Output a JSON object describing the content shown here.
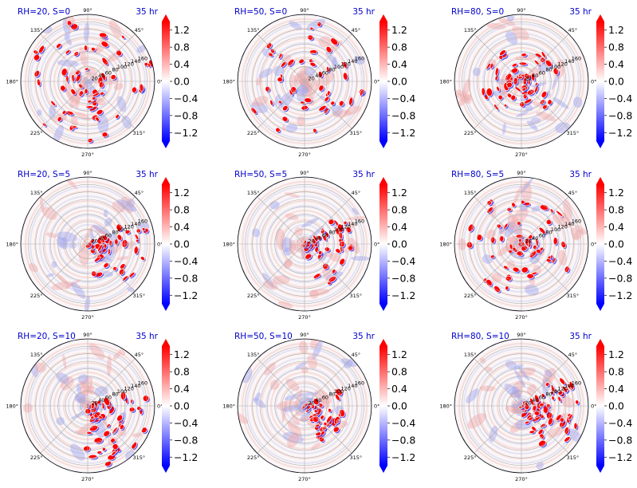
{
  "chart_data": {
    "type": "heatmap",
    "projection": "polar",
    "layout": {
      "rows": 3,
      "cols": 3
    },
    "time_label": "35 hr",
    "angle_ticks": [
      "0°",
      "45°",
      "90°",
      "135°",
      "180°",
      "225°",
      "270°",
      "315°"
    ],
    "radius_ticks": [
      "20",
      "40",
      "60",
      "80",
      "100",
      "120",
      "140",
      "160"
    ],
    "radius_range": [
      0,
      180
    ],
    "colorbar": {
      "range": [
        -1.4,
        1.4
      ],
      "ticks": [
        "1.2",
        "0.8",
        "0.4",
        "0.0",
        "−0.4",
        "−0.8",
        "−1.2"
      ],
      "colormap": "bwr",
      "low_color": "#0000ff",
      "mid_color": "#ffffff",
      "high_color": "#ff0000",
      "extend": "both"
    },
    "panels": [
      {
        "title": "RH=20, S=0"
      },
      {
        "title": "RH=50, S=0"
      },
      {
        "title": "RH=80, S=0"
      },
      {
        "title": "RH=20, S=5"
      },
      {
        "title": "RH=50, S=5"
      },
      {
        "title": "RH=80, S=5"
      },
      {
        "title": "RH=20, S=10"
      },
      {
        "title": "RH=50, S=10"
      },
      {
        "title": "RH=80, S=10"
      }
    ],
    "grid": true
  }
}
